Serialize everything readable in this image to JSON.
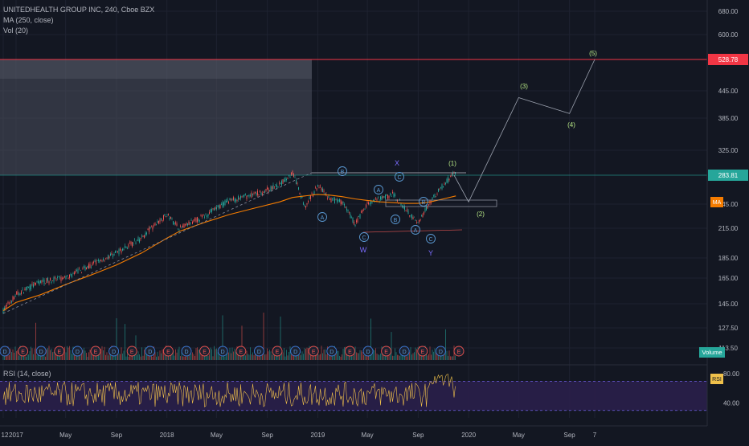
{
  "legend": {
    "title": "UNITEDHEALTH GROUP INC, 240, Cboe BZX",
    "ma": "MA (250, close)",
    "vol": "Vol (20)"
  },
  "rsi_title": "RSI (14, close)",
  "colors": {
    "background": "#131722",
    "grid": "#1e2230",
    "text": "#b2b5be",
    "candle_up": "#26a69a",
    "candle_down": "#ef5350",
    "ma_line": "#f57c00",
    "resistance": "#f23645",
    "current_price": "#26a69a",
    "wave_labels": "#b8e986",
    "abc_circles": "#5b9bd5",
    "wxy": "#7b6cff",
    "rsi_line": "#f0c14b",
    "rsi_band": "#2a1f4a"
  },
  "price_axis": {
    "ticks": [
      "680.00",
      "600.00",
      "445.00",
      "385.00",
      "325.00",
      "245.00",
      "215.00",
      "185.00",
      "165.00",
      "145.00",
      "127.50",
      "113.50"
    ],
    "resistance_label": "528.78",
    "current_label": "283.81",
    "ma_badge": "MA",
    "volume_badge": "Volume"
  },
  "rsi_axis": {
    "ticks": [
      "80.00",
      "40.00"
    ],
    "badge": "RSI"
  },
  "time_axis": {
    "labels": [
      "12",
      "2017",
      "May",
      "Sep",
      "2018",
      "May",
      "Sep",
      "2019",
      "May",
      "Sep",
      "2020",
      "May",
      "Sep",
      "7"
    ]
  },
  "wave_labels": {
    "w1": "(1)",
    "w2": "(2)",
    "w3": "(3)",
    "w4": "(4)",
    "w5": "(5)",
    "x": "X",
    "w": "W",
    "y": "Y"
  },
  "circle_labels": [
    "A",
    "B",
    "C",
    "A",
    "B",
    "C",
    "A",
    "B",
    "C"
  ],
  "earnings_labels": [
    "D",
    "E",
    "D",
    "E",
    "D",
    "E",
    "D",
    "E",
    "D",
    "E",
    "D",
    "E",
    "D",
    "E",
    "D",
    "E",
    "D",
    "E",
    "D",
    "E",
    "D",
    "E",
    "D",
    "E",
    "D",
    "E"
  ],
  "chart_data": {
    "type": "line",
    "title": "UNITEDHEALTH GROUP INC, 240, Cboe BZX",
    "xlabel": "",
    "ylabel": "",
    "x": [
      "2016-12",
      "2017-01",
      "2017-03",
      "2017-05",
      "2017-07",
      "2017-09",
      "2017-11",
      "2018-01",
      "2018-02",
      "2018-04",
      "2018-06",
      "2018-08",
      "2018-10",
      "2018-11",
      "2018-12",
      "2019-01",
      "2019-02",
      "2019-03",
      "2019-04",
      "2019-05",
      "2019-06",
      "2019-07",
      "2019-08",
      "2019-09",
      "2019-10",
      "2019-11",
      "2019-12"
    ],
    "series": [
      {
        "name": "Close",
        "values": [
          140,
          152,
          162,
          165,
          178,
          190,
          205,
          232,
          215,
          230,
          250,
          258,
          270,
          288,
          240,
          270,
          250,
          248,
          220,
          245,
          252,
          258,
          240,
          220,
          250,
          270,
          290
        ]
      }
    ],
    "ma250": [
      140,
      146,
      152,
      160,
      168,
      178,
      190,
      205,
      212,
      222,
      232,
      240,
      248,
      254,
      256,
      258,
      257,
      255,
      252,
      250,
      248,
      247,
      246,
      246,
      248,
      252,
      256
    ],
    "projection": {
      "points": [
        "(2)",
        "(3)",
        "(4)",
        "(5)"
      ],
      "dates": [
        "2020-01",
        "2020-05",
        "2020-09",
        "2020-11"
      ],
      "values": [
        248,
        430,
        395,
        528.78
      ]
    },
    "resistance": 528.78,
    "current_price": 283.81,
    "ylim": [
      105,
      700
    ],
    "rsi_ylim": [
      20,
      90
    ],
    "grid": true,
    "legend": "top-left"
  }
}
